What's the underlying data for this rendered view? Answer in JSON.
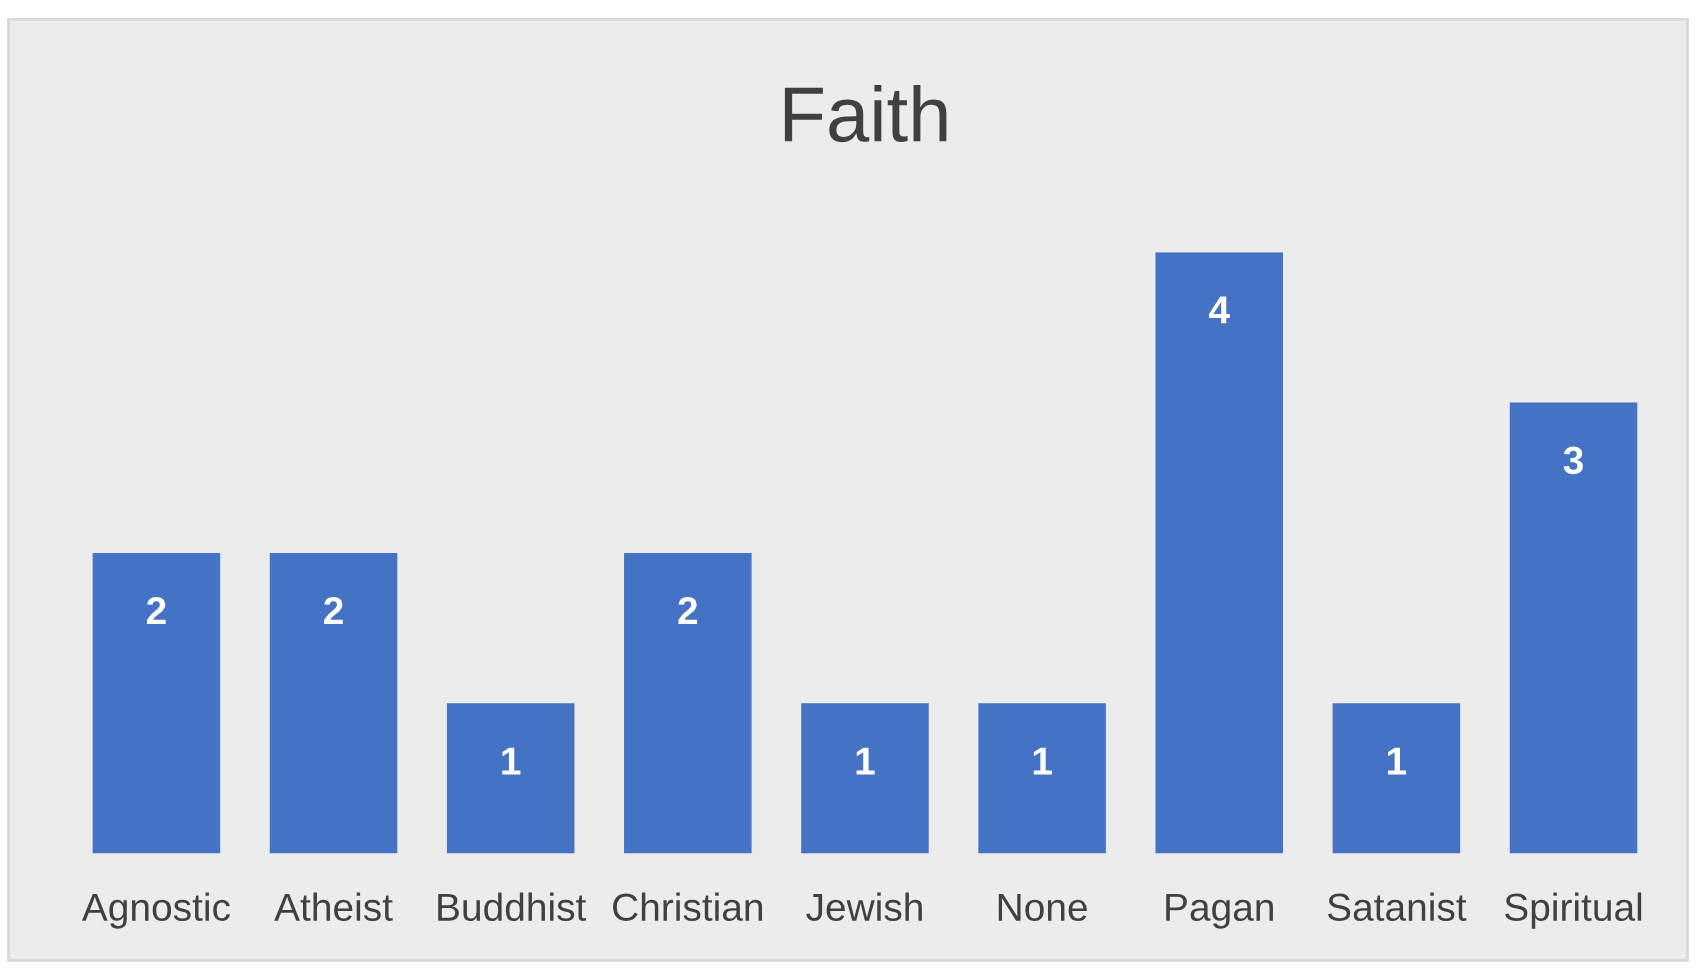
{
  "chart_data": {
    "type": "bar",
    "title": "Faith",
    "categories": [
      "Agnostic",
      "Atheist",
      "Buddhist",
      "Christian",
      "Jewish",
      "None",
      "Pagan",
      "Satanist",
      "Spiritual"
    ],
    "values": [
      2,
      2,
      1,
      2,
      1,
      1,
      4,
      1,
      3
    ],
    "color": "#4472c4",
    "data_labels": true,
    "grid": false,
    "legend": false,
    "tick_labels": "x"
  }
}
